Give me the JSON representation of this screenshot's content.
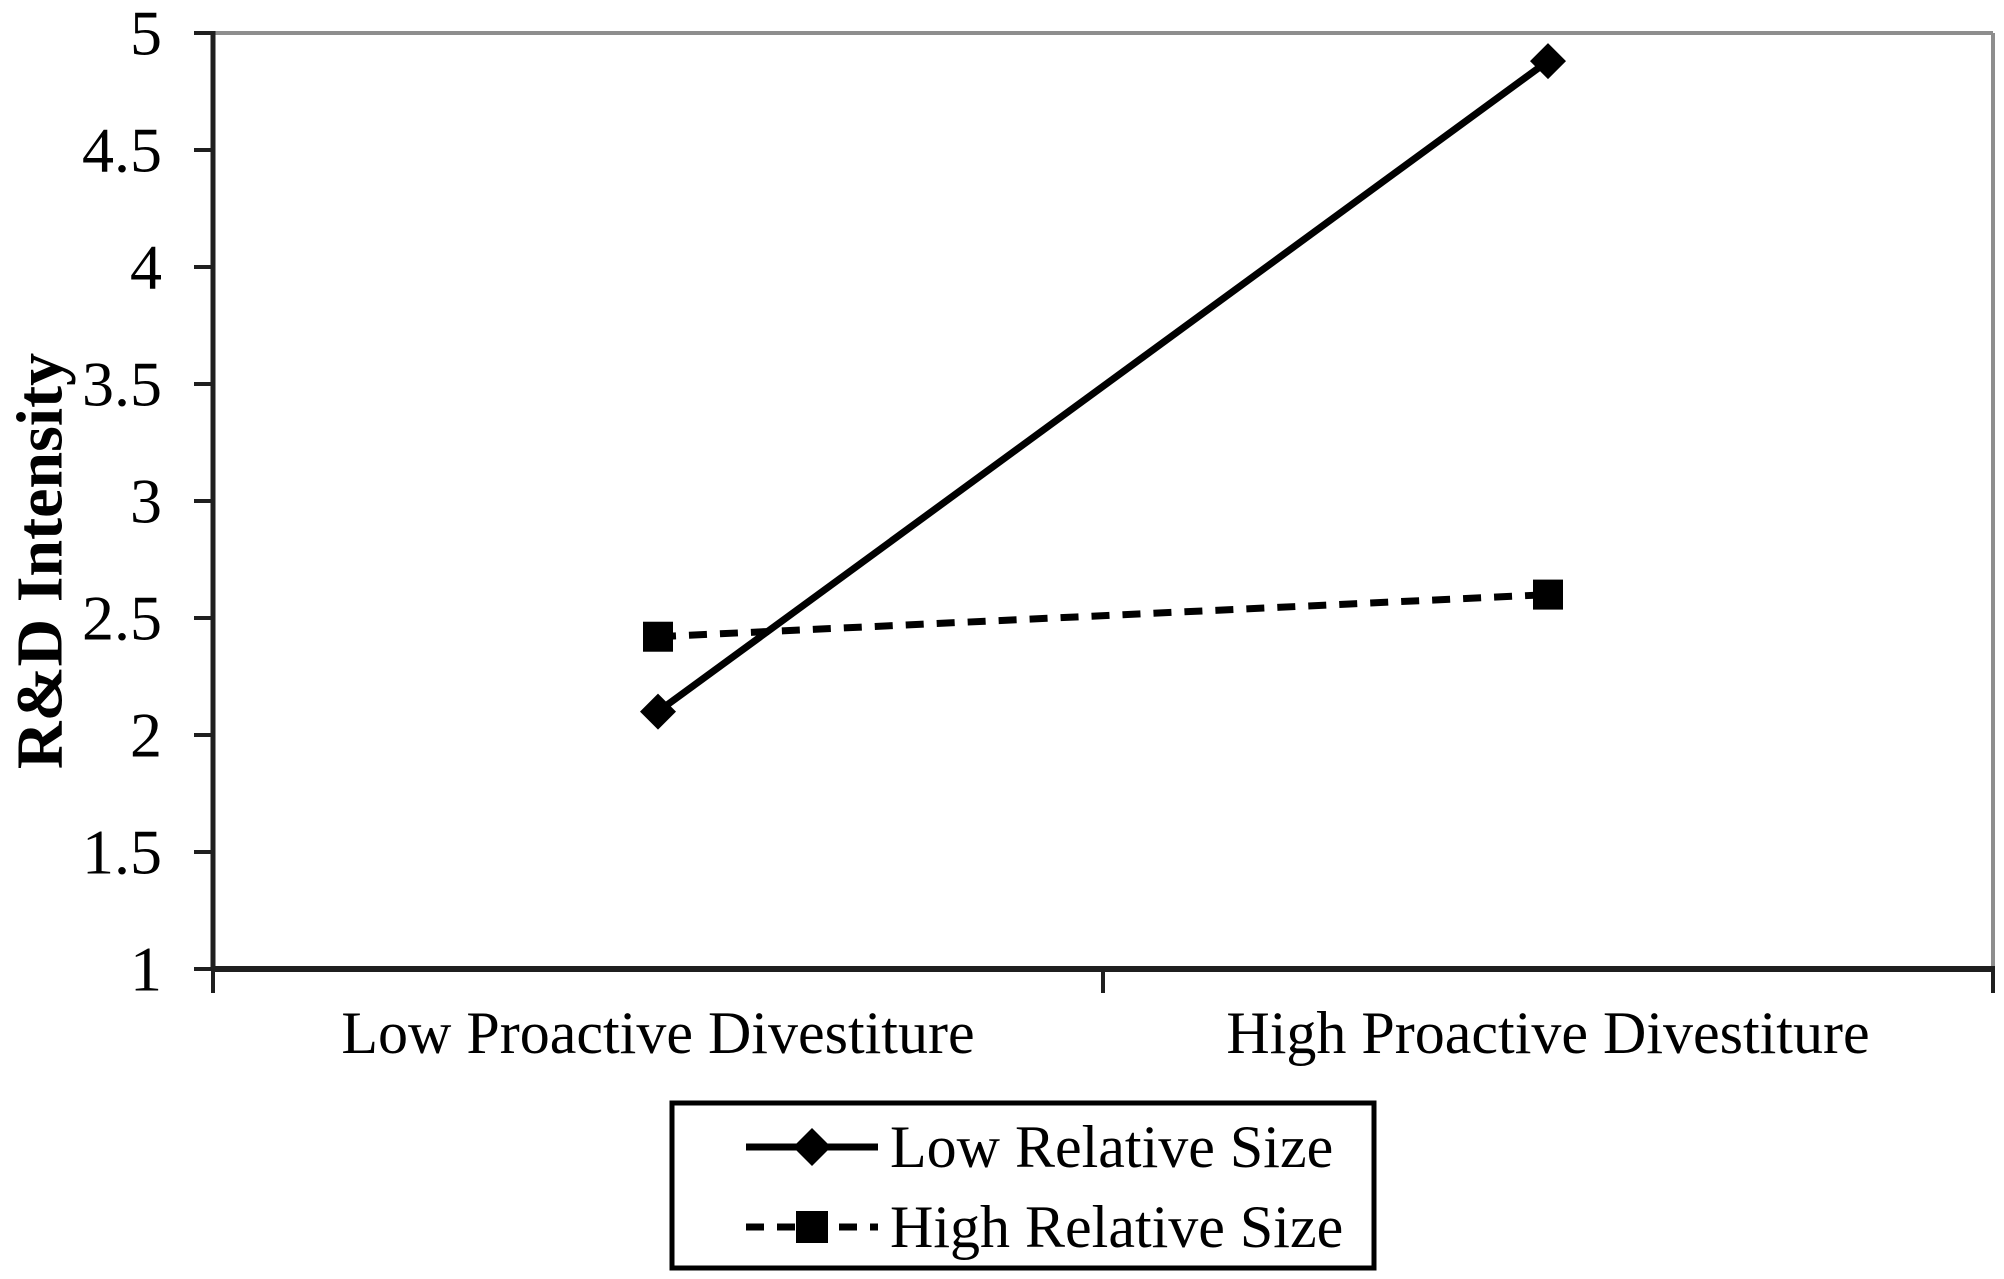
{
  "chart_data": {
    "type": "line",
    "title": "",
    "categories": [
      "Low Proactive Divestiture",
      "High Proactive Divestiture"
    ],
    "series": [
      {
        "name": "Low Relative Size",
        "values": [
          2.1,
          4.88
        ],
        "line_style": "solid",
        "marker": "diamond",
        "color": "#000000"
      },
      {
        "name": "High Relative Size",
        "values": [
          2.42,
          2.6
        ],
        "line_style": "dashed",
        "marker": "square",
        "color": "#000000"
      }
    ],
    "xlabel": "",
    "ylabel": "R&D Intensity",
    "ylim": [
      1,
      5
    ],
    "yticks": [
      1,
      1.5,
      2,
      2.5,
      3,
      3.5,
      4,
      4.5,
      5
    ],
    "ytick_labels": [
      "1",
      "1.5",
      "2",
      "2.5",
      "3",
      "3.5",
      "4",
      "4.5",
      "5"
    ],
    "grid": false,
    "legend": {
      "position": "bottom-center",
      "bordered": true
    },
    "colors": {
      "axis": "#1f1f1f",
      "plot_border": "#8e8e8e",
      "text": "#000000",
      "background": "#ffffff"
    }
  }
}
